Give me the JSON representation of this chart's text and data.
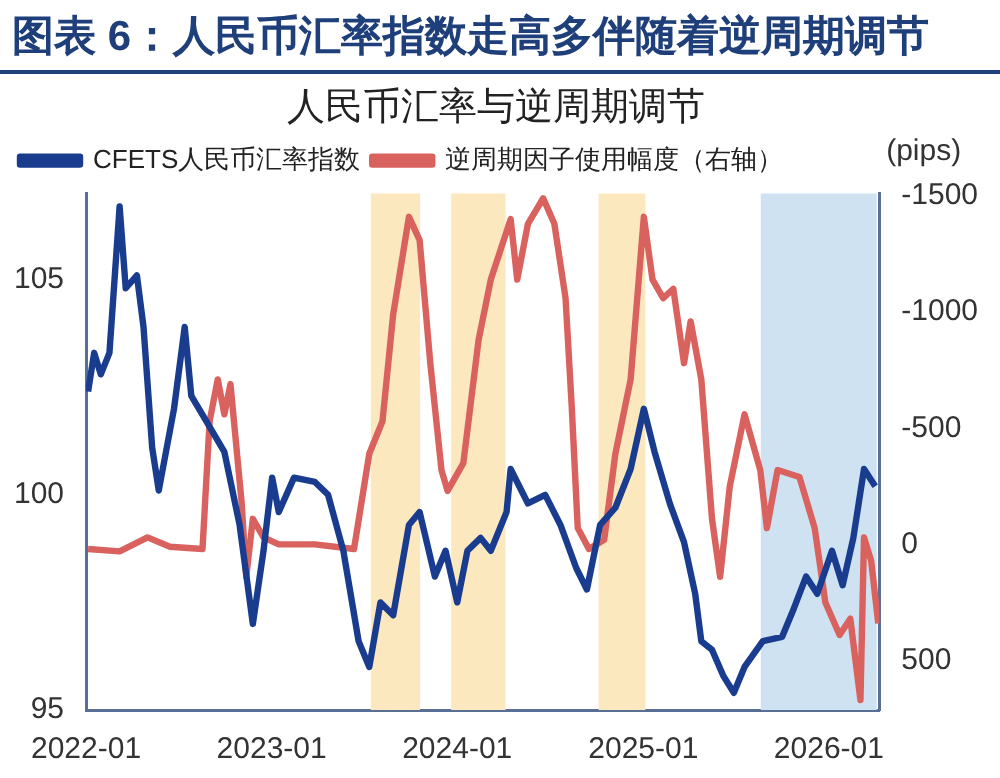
{
  "chart_data": {
    "type": "line",
    "title": "图表 6：人民币汇率指数走高多伴随着逆周期调节",
    "subtitle": "人民币汇率与逆周期调节",
    "y2label": "(pips)",
    "xlim": [
      "2022-01-01",
      "2026-04-10"
    ],
    "xticks": [
      "2022-01",
      "2023-01",
      "2024-01",
      "2025-01",
      "2026-01"
    ],
    "ylim": [
      95,
      107
    ],
    "yticks": [
      95,
      100,
      105
    ],
    "y2lim": [
      713,
      -1510
    ],
    "y2ticks": [
      -1500,
      -1000,
      -500,
      0,
      500
    ],
    "grid": false,
    "legend": "top",
    "marker": "none",
    "line_style": "solid",
    "bands": [
      {
        "axis": "x",
        "from": "2023-07-15",
        "to": "2023-10-20",
        "color": "#fbe8bf"
      },
      {
        "axis": "x",
        "from": "2023-12-20",
        "to": "2024-04-05",
        "color": "#fbe8bf"
      },
      {
        "axis": "x",
        "from": "2024-10-05",
        "to": "2025-01-05",
        "color": "#fbe8bf"
      },
      {
        "axis": "x",
        "from": "2025-08-20",
        "to": "2026-04-05",
        "color": "#cfe2f2"
      }
    ],
    "series": [
      {
        "name": "CFETS人民币汇率指数",
        "color": "#1a3c8f",
        "x": [
          "2022-01-05",
          "2022-01-17",
          "2022-01-30",
          "2022-02-16",
          "2022-03-08",
          "2022-03-20",
          "2022-04-11",
          "2022-04-24",
          "2022-05-11",
          "2022-05-24",
          "2022-06-23",
          "2022-07-14",
          "2022-07-27",
          "2022-08-26",
          "2022-09-30",
          "2022-10-30",
          "2022-11-25",
          "2022-12-16",
          "2023-01-02",
          "2023-01-15",
          "2023-02-14",
          "2023-03-27",
          "2023-04-22",
          "2023-05-22",
          "2023-06-21",
          "2023-07-12",
          "2023-08-03",
          "2023-08-28",
          "2023-09-28",
          "2023-10-19",
          "2023-11-18",
          "2023-12-09",
          "2024-01-01",
          "2024-01-21",
          "2024-02-16",
          "2024-03-07",
          "2024-04-07",
          "2024-04-15",
          "2024-05-19",
          "2024-06-22",
          "2024-07-22",
          "2024-08-22",
          "2024-09-12",
          "2024-10-08",
          "2024-11-07",
          "2024-12-07",
          "2025-01-02",
          "2025-01-23",
          "2025-02-22",
          "2025-03-22",
          "2025-04-13",
          "2025-04-25",
          "2025-05-16",
          "2025-06-07",
          "2025-06-28",
          "2025-07-19",
          "2025-08-24",
          "2025-10-01",
          "2025-10-22",
          "2025-11-17",
          "2025-12-09",
          "2026-01-07",
          "2026-01-28",
          "2026-02-18",
          "2026-03-11",
          "2026-04-02"
        ],
        "values": [
          102.4,
          103.3,
          102.8,
          103.3,
          106.7,
          104.8,
          105.1,
          103.9,
          101.1,
          100.1,
          102.0,
          103.9,
          102.3,
          101.7,
          101.0,
          99.3,
          97.0,
          98.7,
          100.4,
          99.6,
          100.4,
          100.3,
          100.0,
          98.7,
          96.6,
          96.0,
          97.5,
          97.2,
          99.3,
          99.6,
          98.1,
          98.7,
          97.5,
          98.7,
          99.0,
          98.7,
          99.6,
          100.6,
          99.8,
          100.0,
          99.3,
          98.3,
          97.8,
          99.3,
          99.7,
          100.6,
          102.0,
          101.0,
          99.8,
          98.9,
          97.7,
          96.6,
          96.4,
          95.8,
          95.4,
          96.0,
          96.6,
          96.7,
          97.3,
          98.1,
          97.7,
          98.7,
          97.9,
          99.0,
          100.6,
          100.2
        ]
      },
      {
        "name": "逆周期因子使用幅度（右轴）",
        "color": "#d9625f",
        "axis": "y2",
        "x": [
          "2022-01-05",
          "2022-03-08",
          "2022-05-02",
          "2022-06-15",
          "2022-08-18",
          "2022-09-01",
          "2022-09-17",
          "2022-09-30",
          "2022-10-12",
          "2022-11-03",
          "2022-11-12",
          "2022-11-25",
          "2022-12-16",
          "2023-01-15",
          "2023-03-27",
          "2023-06-12",
          "2023-07-12",
          "2023-08-07",
          "2023-08-28",
          "2023-09-28",
          "2023-10-19",
          "2023-11-09",
          "2023-12-01",
          "2023-12-13",
          "2024-01-13",
          "2024-02-12",
          "2024-03-07",
          "2024-04-15",
          "2024-04-28",
          "2024-05-19",
          "2024-06-18",
          "2024-07-10",
          "2024-08-01",
          "2024-08-13",
          "2024-08-25",
          "2024-09-16",
          "2024-10-16",
          "2024-11-07",
          "2024-12-07",
          "2025-01-02",
          "2025-01-19",
          "2025-02-09",
          "2025-03-01",
          "2025-03-22",
          "2025-04-04",
          "2025-04-25",
          "2025-05-16",
          "2025-06-01",
          "2025-06-20",
          "2025-07-19",
          "2025-08-19",
          "2025-09-01",
          "2025-09-22",
          "2025-11-04",
          "2025-12-04",
          "2025-12-25",
          "2026-01-22",
          "2026-02-12",
          "2026-03-04",
          "2026-03-11",
          "2026-03-25",
          "2026-04-08"
        ],
        "values": [
          20,
          30,
          -30,
          10,
          20,
          -530,
          -710,
          -560,
          -690,
          -180,
          140,
          -110,
          -30,
          0,
          0,
          20,
          -390,
          -530,
          -990,
          -1410,
          -1310,
          -780,
          -320,
          -230,
          -350,
          -880,
          -1140,
          -1400,
          -1140,
          -1380,
          -1490,
          -1380,
          -1060,
          -600,
          -70,
          20,
          -20,
          -390,
          -710,
          -1410,
          -1140,
          -1060,
          -1100,
          -780,
          -960,
          -710,
          -110,
          140,
          -250,
          -560,
          -320,
          -70,
          -320,
          -290,
          -70,
          250,
          390,
          320,
          670,
          -30,
          70,
          340
        ]
      }
    ]
  }
}
